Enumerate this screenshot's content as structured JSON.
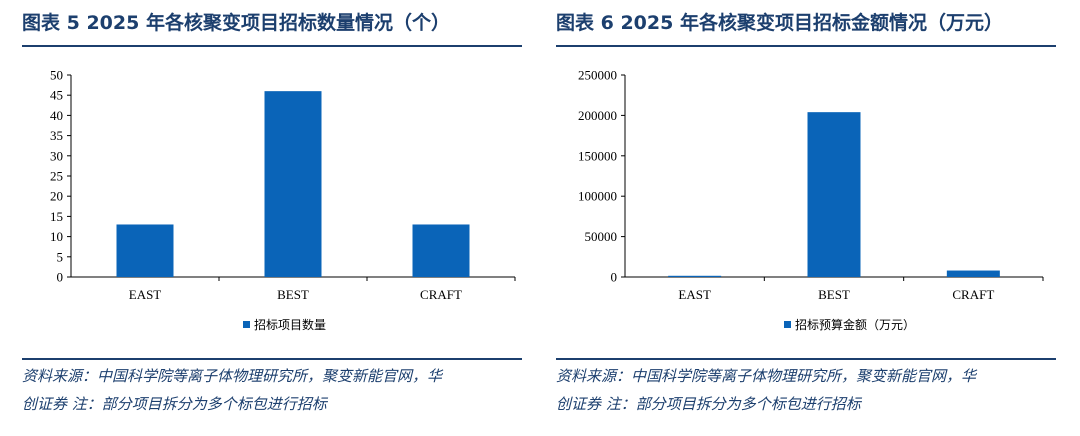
{
  "charts": [
    {
      "title": "图表 5   2025 年各核聚变项目招标数量情况（个）",
      "source_line1": "资料来源：中国科学院等离子体物理研究所，聚变新能官网，华",
      "source_line2": "创证券      注：部分项目拆分为多个标包进行招标",
      "chart_data": {
        "type": "bar",
        "categories": [
          "EAST",
          "BEST",
          "CRAFT"
        ],
        "series": [
          {
            "name": "招标项目数量",
            "values": [
              13,
              46,
              13
            ],
            "color": "#0a64b8"
          }
        ],
        "yticks": [
          "0",
          "5",
          "10",
          "15",
          "20",
          "25",
          "30",
          "35",
          "40",
          "45",
          "50"
        ],
        "ylim": [
          0,
          50
        ],
        "legend": "bottom-center",
        "grid": false
      }
    },
    {
      "title": "图表 6   2025 年各核聚变项目招标金额情况（万元）",
      "source_line1": "资料来源：中国科学院等离子体物理研究所，聚变新能官网，华",
      "source_line2": "创证券      注：部分项目拆分为多个标包进行招标",
      "chart_data": {
        "type": "bar",
        "categories": [
          "EAST",
          "BEST",
          "CRAFT"
        ],
        "series": [
          {
            "name": "招标预算金额（万元）",
            "values": [
              1500,
              204000,
              8000
            ],
            "color": "#0a64b8"
          }
        ],
        "yticks": [
          "0",
          "50000",
          "100000",
          "150000",
          "200000",
          "250000"
        ],
        "ylim": [
          0,
          250000
        ],
        "legend": "bottom-center",
        "grid": false
      }
    }
  ]
}
